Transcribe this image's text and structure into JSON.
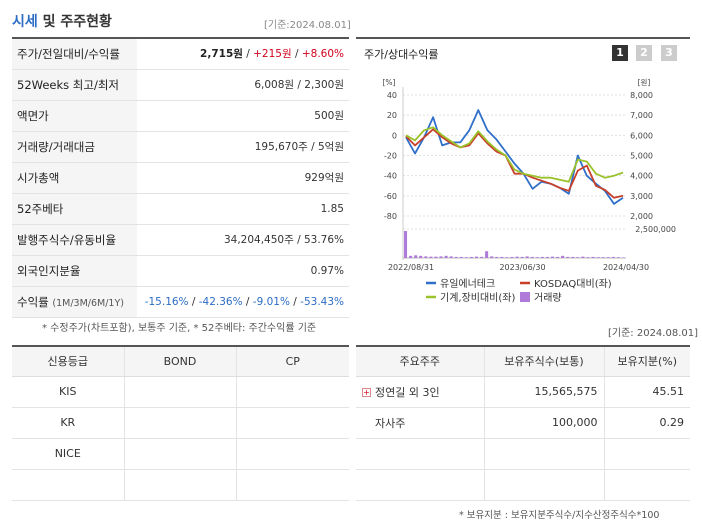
{
  "header": {
    "title_part1": "시세",
    "title_part2": " 및 주주현황",
    "base_date": "[기준:2024.08.01]"
  },
  "stats": {
    "price_label": "주가/전일대비/수익률",
    "price": "2,715원",
    "change": "+215원",
    "change_pct": "+8.60%",
    "week52_label": "52Weeks 최고/최저",
    "week52_value": "6,008원 / 2,300원",
    "face_label": "액면가",
    "face_value": "500원",
    "volume_label": "거래량/거래대금",
    "volume_value": "195,670주 / 5억원",
    "mcap_label": "시가총액",
    "mcap_value": "929억원",
    "beta_label": "52주베타",
    "beta_value": "1.85",
    "shares_label": "발행주식수/유동비율",
    "shares_value": "34,204,450주 / 53.76%",
    "foreign_label": "외국인지분율",
    "foreign_value": "0.97%",
    "return_label": "수익률",
    "return_period": "(1M/3M/6M/1Y)",
    "r1": "-15.16%",
    "r2": "-42.36%",
    "r3": "-9.01%",
    "r4": "-53.43%"
  },
  "notes": {
    "left": "* 수정주가(차트포함), 보통주 기준, * 52주베타: 주간수익률 기준",
    "date2": "[기준: 2024.08.01]",
    "bottom": "* 보유지분 : 보유지분주식수/지수산정주식수*100"
  },
  "chart_panel": {
    "title": "주가/상대수익률",
    "pages": [
      "1",
      "2",
      "3"
    ]
  },
  "chart_data": {
    "type": "line",
    "left_unit": "[%]",
    "right_unit": "[원]",
    "y_left_ticks": [
      "40",
      "20",
      "0",
      "-20",
      "-40",
      "-60",
      "-80"
    ],
    "y_right_ticks": [
      "8,000",
      "7,000",
      "6,000",
      "5,000",
      "4,000",
      "3,000",
      "2,000"
    ],
    "volume_tick": "2,500,000",
    "ylim_left": [
      -80,
      40
    ],
    "x_labels": [
      "2022/08/31",
      "2023/06/30",
      "2024/04/30"
    ],
    "x_label_index": [
      0,
      16,
      32
    ],
    "series": [
      {
        "name": "유일에너테크",
        "color": "#2f6fc9",
        "values": [
          -2,
          -18,
          -2,
          18,
          -10,
          -7,
          -7,
          5,
          25,
          5,
          -4,
          -16,
          -28,
          -38,
          -53,
          -46,
          -48,
          -52,
          -58,
          -20,
          -40,
          -48,
          -55,
          -68,
          -62
        ]
      },
      {
        "name": "KOSDAQ대비(좌)",
        "color": "#c8402a",
        "values": [
          -1,
          -10,
          -2,
          6,
          -2,
          -8,
          -12,
          -10,
          2,
          -8,
          -16,
          -20,
          -38,
          -38,
          -42,
          -45,
          -48,
          -52,
          -55,
          -35,
          -30,
          -50,
          -54,
          -62,
          -60
        ]
      },
      {
        "name": "기계,장비대비(좌)",
        "color": "#9ac22a",
        "values": [
          0,
          -5,
          5,
          8,
          0,
          -6,
          -12,
          -8,
          4,
          -6,
          -14,
          -20,
          -34,
          -38,
          -40,
          -42,
          -42,
          -44,
          -46,
          -24,
          -26,
          -38,
          -42,
          -40,
          -37
        ]
      }
    ],
    "volume": {
      "name": "거래량",
      "color": "#b07ad8",
      "values": [
        1.0,
        0.08,
        0.1,
        0.08,
        0.06,
        0.05,
        0.05,
        0.06,
        0.08,
        0.06,
        0.04,
        0.04,
        0.03,
        0.04,
        0.05,
        0.04,
        0.25,
        0.06,
        0.04,
        0.04,
        0.03,
        0.04,
        0.05,
        0.04,
        0.06,
        0.04,
        0.03,
        0.04,
        0.04,
        0.05,
        0.04,
        0.08,
        0.04,
        0.04,
        0.03,
        0.05,
        0.03,
        0.04,
        0.03,
        0.03,
        0.03,
        0.04,
        0.03,
        0.02
      ]
    }
  },
  "credit": {
    "headers": [
      "신용등급",
      "BOND",
      "CP"
    ],
    "rows": [
      [
        "KIS",
        "",
        ""
      ],
      [
        "KR",
        "",
        ""
      ],
      [
        "NICE",
        "",
        ""
      ],
      [
        "",
        "",
        ""
      ]
    ]
  },
  "holders": {
    "headers": [
      "주요주주",
      "보유주식수(보통)",
      "보유지분(%)"
    ],
    "rows": [
      [
        "정연길 외 3인",
        "15,565,575",
        "45.51"
      ],
      [
        "자사주",
        "100,000",
        "0.29"
      ],
      [
        "",
        "",
        ""
      ],
      [
        "",
        "",
        ""
      ]
    ]
  }
}
